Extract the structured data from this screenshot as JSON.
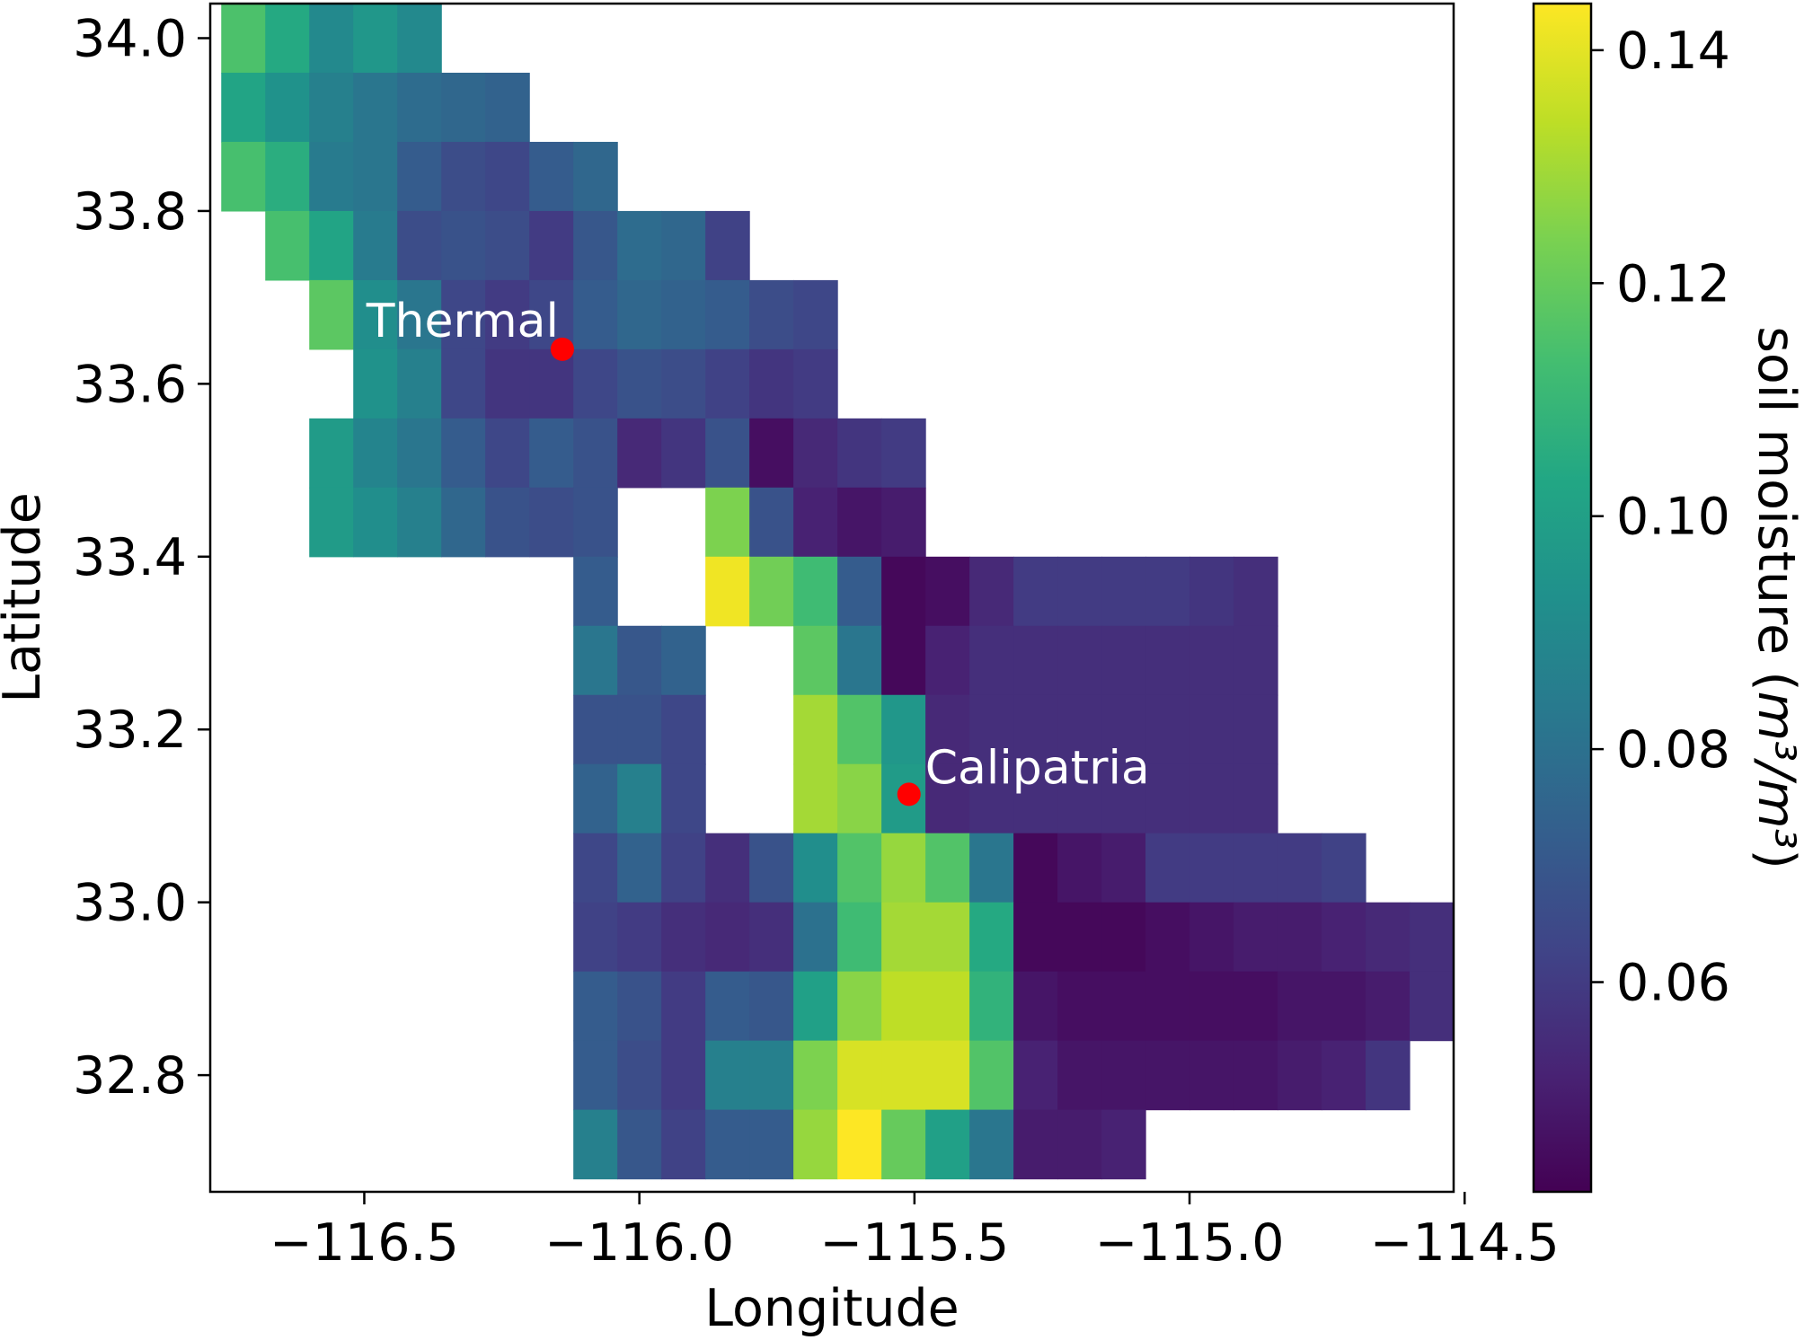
{
  "chart_data": {
    "type": "heatmap",
    "title": "",
    "xlabel": "Longitude",
    "ylabel": "Latitude",
    "xlim": [
      -116.78,
      -114.52
    ],
    "ylim": [
      32.665,
      34.04
    ],
    "cell_size_deg": 0.08,
    "x_ticks": [
      {
        "value": -116.5,
        "label": "−116.5"
      },
      {
        "value": -116.0,
        "label": "−116.0"
      },
      {
        "value": -115.5,
        "label": "−115.5"
      },
      {
        "value": -115.0,
        "label": "−115.0"
      },
      {
        "value": -114.5,
        "label": "−114.5"
      }
    ],
    "y_ticks": [
      {
        "value": 34.0,
        "label": "34.0"
      },
      {
        "value": 33.8,
        "label": "33.8"
      },
      {
        "value": 33.6,
        "label": "33.6"
      },
      {
        "value": 33.4,
        "label": "33.4"
      },
      {
        "value": 33.2,
        "label": "33.2"
      },
      {
        "value": 33.0,
        "label": "33.0"
      },
      {
        "value": 32.8,
        "label": "32.8"
      }
    ],
    "colorbar": {
      "colormap": "viridis",
      "vmin": 0.042,
      "vmax": 0.144,
      "label_text": "soil moisture (",
      "label_math": "m³/m³",
      "label_close": ")",
      "ticks": [
        {
          "value": 0.06,
          "label": "0.06"
        },
        {
          "value": 0.08,
          "label": "0.08"
        },
        {
          "value": 0.1,
          "label": "0.10"
        },
        {
          "value": 0.12,
          "label": "0.12"
        },
        {
          "value": 0.14,
          "label": "0.14"
        }
      ]
    },
    "grid_origin": {
      "lon_west": -116.76,
      "lat_north": 34.04
    },
    "grid": [
      [
        0.115,
        0.104,
        0.09,
        0.096,
        0.09,
        null,
        null,
        null,
        null,
        null,
        null,
        null,
        null,
        null,
        null,
        null,
        null,
        null,
        null,
        null,
        null,
        null,
        null,
        null,
        null,
        null,
        null,
        null
      ],
      [
        0.102,
        0.094,
        0.086,
        0.082,
        0.078,
        0.076,
        0.074,
        null,
        null,
        null,
        null,
        null,
        null,
        null,
        null,
        null,
        null,
        null,
        null,
        null,
        null,
        null,
        null,
        null,
        null,
        null,
        null,
        null
      ],
      [
        0.114,
        0.106,
        0.084,
        0.082,
        0.072,
        0.066,
        0.064,
        0.072,
        0.076,
        null,
        null,
        null,
        null,
        null,
        null,
        null,
        null,
        null,
        null,
        null,
        null,
        null,
        null,
        null,
        null,
        null,
        null,
        null
      ],
      [
        null,
        0.114,
        0.102,
        0.084,
        0.066,
        0.068,
        0.066,
        0.06,
        0.07,
        0.078,
        0.076,
        0.062,
        null,
        null,
        null,
        null,
        null,
        null,
        null,
        null,
        null,
        null,
        null,
        null,
        null,
        null,
        null,
        null
      ],
      [
        null,
        null,
        0.118,
        0.092,
        0.082,
        0.064,
        0.06,
        0.064,
        0.072,
        0.076,
        0.074,
        0.072,
        0.066,
        0.064,
        null,
        null,
        null,
        null,
        null,
        null,
        null,
        null,
        null,
        null,
        null,
        null,
        null,
        null
      ],
      [
        null,
        null,
        null,
        0.094,
        0.086,
        0.064,
        0.058,
        0.058,
        0.064,
        0.068,
        0.066,
        0.062,
        0.058,
        0.06,
        null,
        null,
        null,
        null,
        null,
        null,
        null,
        null,
        null,
        null,
        null,
        null,
        null,
        null
      ],
      [
        null,
        null,
        0.098,
        0.088,
        0.082,
        0.072,
        0.064,
        0.072,
        0.068,
        0.054,
        0.058,
        0.068,
        0.046,
        0.054,
        0.058,
        0.06,
        null,
        null,
        null,
        null,
        null,
        null,
        null,
        null,
        null,
        null,
        null,
        null
      ],
      [
        null,
        null,
        0.098,
        0.092,
        0.086,
        0.076,
        0.068,
        0.066,
        0.068,
        null,
        null,
        0.124,
        0.068,
        0.052,
        0.048,
        0.05,
        null,
        null,
        null,
        null,
        null,
        null,
        null,
        null,
        null,
        null,
        null,
        null
      ],
      [
        null,
        null,
        null,
        null,
        null,
        null,
        null,
        null,
        0.072,
        null,
        null,
        0.142,
        0.122,
        0.112,
        0.072,
        0.044,
        0.046,
        0.054,
        0.06,
        0.06,
        0.06,
        0.06,
        0.058,
        0.056,
        null,
        null,
        null,
        null
      ],
      [
        null,
        null,
        null,
        null,
        null,
        null,
        null,
        null,
        0.082,
        0.07,
        0.074,
        null,
        null,
        0.118,
        0.082,
        0.044,
        0.052,
        0.056,
        0.056,
        0.056,
        0.056,
        0.056,
        0.056,
        0.056,
        null,
        null,
        null,
        null
      ],
      [
        null,
        null,
        null,
        null,
        null,
        null,
        null,
        null,
        0.068,
        0.068,
        0.064,
        null,
        null,
        0.13,
        0.116,
        0.096,
        0.054,
        0.056,
        0.056,
        0.056,
        0.056,
        0.056,
        0.056,
        0.056,
        null,
        null,
        null,
        null
      ],
      [
        null,
        null,
        null,
        null,
        null,
        null,
        null,
        null,
        0.074,
        0.086,
        0.064,
        null,
        null,
        0.13,
        0.126,
        0.098,
        0.054,
        0.056,
        0.056,
        0.056,
        0.056,
        0.056,
        0.056,
        0.056,
        null,
        null,
        null,
        null
      ],
      [
        null,
        null,
        null,
        null,
        null,
        null,
        null,
        null,
        0.064,
        0.074,
        0.062,
        0.056,
        0.068,
        0.092,
        0.116,
        0.128,
        0.116,
        0.082,
        0.044,
        0.048,
        0.05,
        0.06,
        0.06,
        0.06,
        0.06,
        0.062,
        null,
        null
      ],
      [
        null,
        null,
        null,
        null,
        null,
        null,
        null,
        null,
        0.062,
        0.06,
        0.056,
        0.054,
        0.056,
        0.08,
        0.112,
        0.13,
        0.13,
        0.104,
        0.044,
        0.044,
        0.044,
        0.046,
        0.048,
        0.05,
        0.05,
        0.052,
        0.054,
        0.056
      ],
      [
        null,
        null,
        null,
        null,
        null,
        null,
        null,
        null,
        0.072,
        0.068,
        0.06,
        0.072,
        0.07,
        0.1,
        0.126,
        0.134,
        0.134,
        0.108,
        0.048,
        0.046,
        0.046,
        0.046,
        0.046,
        0.046,
        0.048,
        0.048,
        0.05,
        0.056
      ],
      [
        null,
        null,
        null,
        null,
        null,
        null,
        null,
        null,
        0.072,
        0.066,
        0.06,
        0.086,
        0.086,
        0.124,
        0.138,
        0.138,
        0.138,
        0.116,
        0.052,
        0.048,
        0.048,
        0.048,
        0.048,
        0.048,
        0.05,
        0.052,
        0.058,
        null
      ],
      [
        null,
        null,
        null,
        null,
        null,
        null,
        null,
        null,
        0.086,
        0.07,
        0.062,
        0.072,
        0.072,
        0.128,
        0.144,
        0.12,
        0.1,
        0.082,
        0.05,
        0.05,
        0.052,
        null,
        null,
        null,
        null,
        null,
        null,
        null
      ]
    ],
    "annotations": [
      {
        "text": "Thermal",
        "lon": -116.14,
        "lat": 33.64,
        "marker_color": "#ff0000"
      },
      {
        "text": "Calipatria",
        "lon": -115.51,
        "lat": 33.125,
        "marker_color": "#ff0000"
      }
    ]
  }
}
